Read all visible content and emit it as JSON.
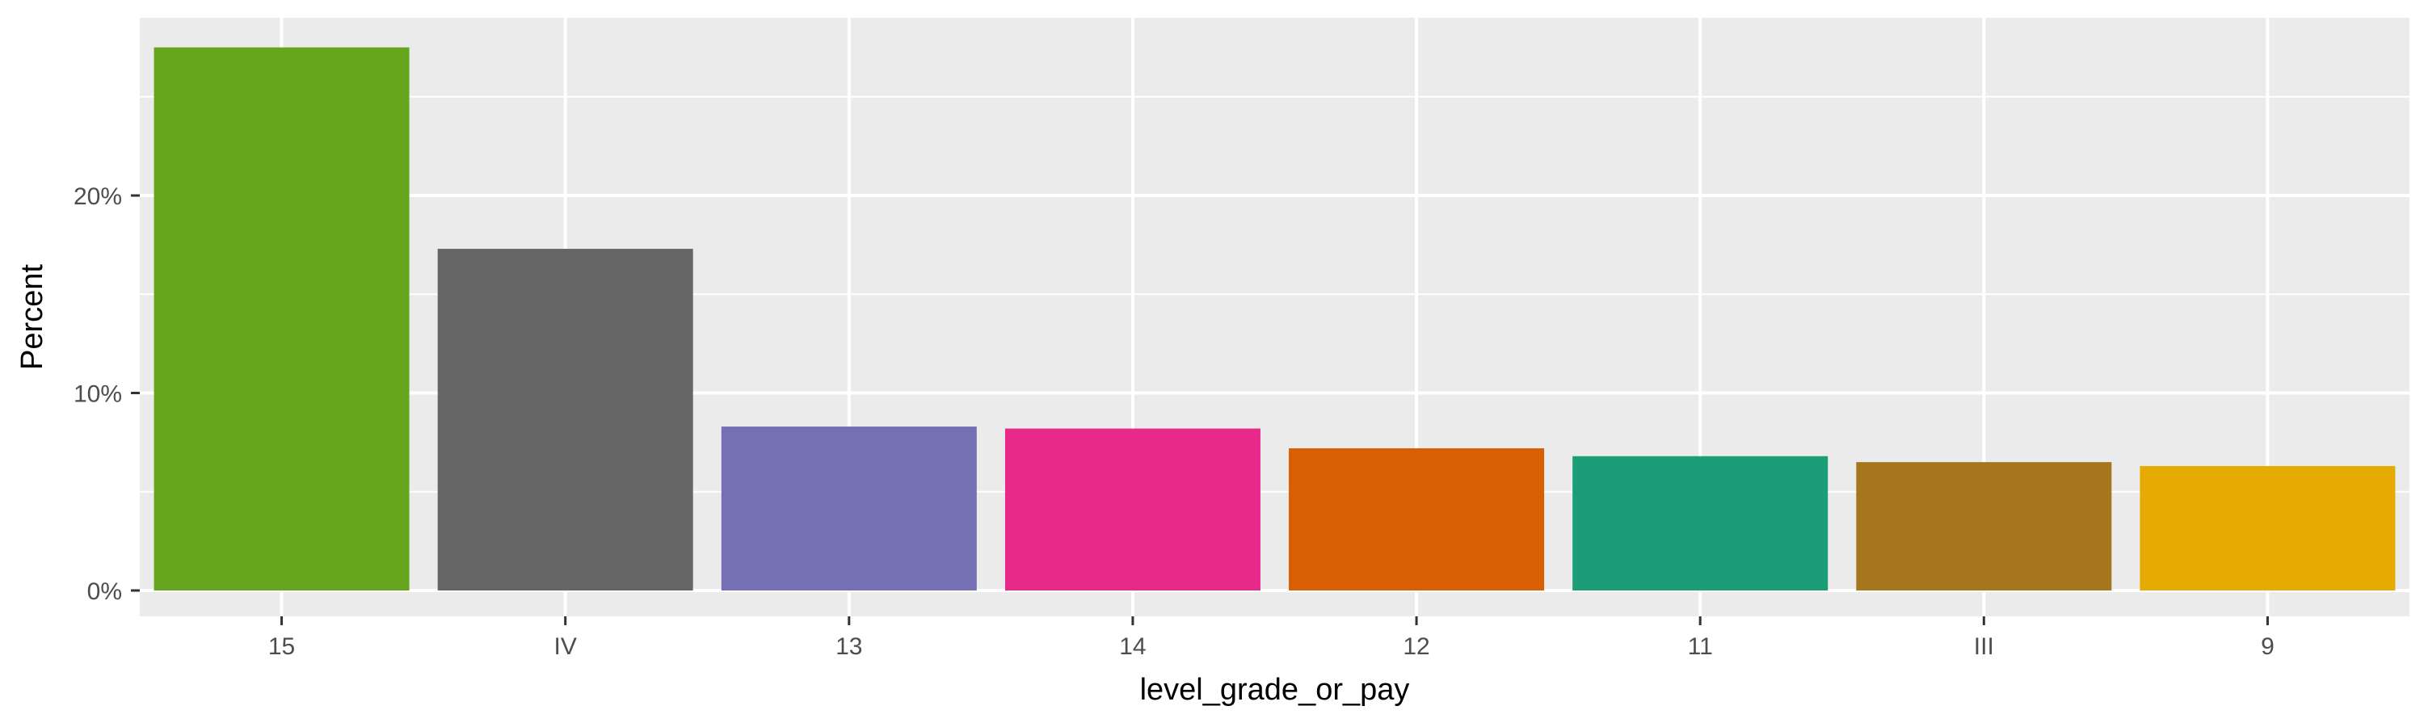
{
  "chart_data": {
    "type": "bar",
    "xlabel": "level_grade_or_pay",
    "ylabel": "Percent",
    "categories": [
      "15",
      "IV",
      "13",
      "14",
      "12",
      "11",
      "III",
      "9"
    ],
    "values": [
      27.5,
      17.3,
      8.3,
      8.2,
      7.2,
      6.8,
      6.5,
      6.3
    ],
    "colors": [
      "#66a61e",
      "#666666",
      "#7570b3",
      "#e7298a",
      "#d95f02",
      "#1b9e77",
      "#a6761d",
      "#e6ab02"
    ],
    "ylim": [
      0,
      29.0
    ],
    "yticks": [
      0,
      10,
      20
    ],
    "ytick_labels": [
      "0%",
      "10%",
      "20%"
    ],
    "grid": true,
    "panel_background": "#ebebeb",
    "grid_color": "#ffffff",
    "legend": "none"
  }
}
